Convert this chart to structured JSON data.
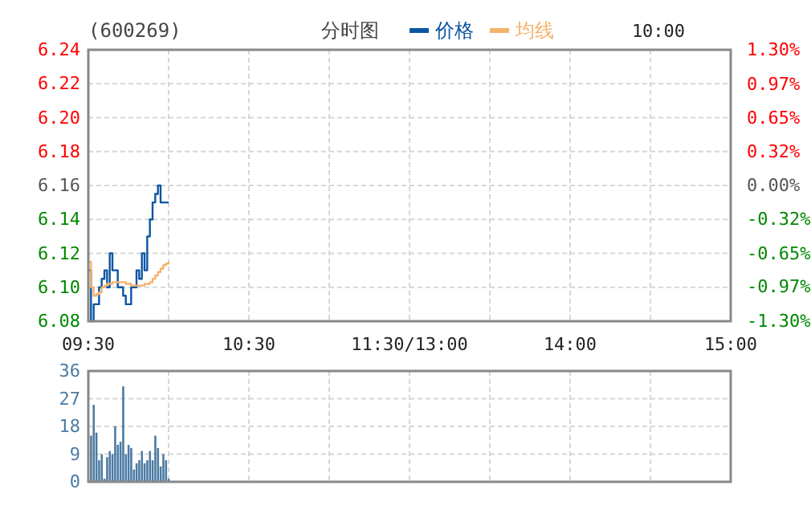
{
  "chart_data": [
    {
      "type": "line",
      "title": "(600269)",
      "subtitle": "分时图",
      "categories": [
        "09:30",
        null,
        null,
        null,
        null,
        null,
        null,
        null,
        null,
        null,
        null,
        null,
        null,
        null,
        null,
        null,
        null,
        null,
        null,
        null,
        null,
        null,
        null,
        null,
        null,
        null,
        null,
        null,
        null,
        null,
        null,
        null,
        null,
        null,
        null,
        null,
        null,
        null,
        null,
        null,
        null,
        null,
        null,
        null,
        null,
        null,
        null,
        null,
        null,
        null,
        null,
        null,
        null,
        null,
        null,
        null,
        null,
        null,
        null,
        null,
        "10:30",
        null,
        null,
        null,
        null,
        null,
        null,
        null,
        null,
        null,
        null,
        null,
        null,
        null,
        null,
        null,
        null,
        null,
        null,
        null,
        null,
        null,
        null,
        null,
        null,
        null,
        null,
        null,
        null,
        null,
        null,
        null,
        null,
        null,
        null,
        null,
        null,
        null,
        null,
        null,
        null,
        null,
        null,
        null,
        null,
        null,
        null,
        null,
        null,
        null,
        null,
        null,
        null,
        null,
        null,
        null,
        null,
        null,
        null,
        null,
        "11:30/13:00",
        null,
        null,
        null,
        null,
        null,
        null,
        null,
        null,
        null,
        null,
        null,
        null,
        null,
        null,
        null,
        null,
        null,
        null,
        null,
        null,
        null,
        null,
        null,
        null,
        null,
        null,
        null,
        null,
        null,
        null,
        null,
        null,
        null,
        null,
        null,
        null,
        null,
        null,
        null,
        null,
        null,
        null,
        null,
        null,
        null,
        null,
        null,
        null,
        null,
        null,
        null,
        null,
        null,
        null,
        null,
        null,
        null,
        null,
        null,
        "14:00",
        null,
        null,
        null,
        null,
        null,
        null,
        null,
        null,
        null,
        null,
        null,
        null,
        null,
        null,
        null,
        null,
        null,
        null,
        null,
        null,
        null,
        null,
        null,
        null,
        null,
        null,
        null,
        null,
        null,
        null,
        null,
        null,
        null,
        null,
        null,
        null,
        null,
        null,
        null,
        null,
        null,
        null,
        null,
        null,
        null,
        null,
        null,
        null,
        null,
        null,
        null,
        null,
        null,
        null,
        null,
        null,
        null,
        null,
        null,
        "15:00"
      ],
      "series": [
        {
          "name": "价格",
          "color": "#0a55a3",
          "values": [
            6.11,
            6.08,
            6.09,
            6.09,
            6.1,
            6.105,
            6.11,
            6.1,
            6.12,
            6.11,
            6.11,
            6.1,
            6.1,
            6.095,
            6.09,
            6.09,
            6.1,
            6.1,
            6.11,
            6.105,
            6.12,
            6.11,
            6.13,
            6.14,
            6.15,
            6.155,
            6.16,
            6.15,
            6.15,
            6.15,
            6.15,
            null,
            null,
            null,
            null,
            null,
            null,
            null,
            null,
            null,
            null,
            null,
            null,
            null,
            null,
            null,
            null,
            null,
            null,
            null,
            null,
            null,
            null,
            null,
            null,
            null,
            null,
            null,
            null,
            null,
            null,
            null,
            null,
            null,
            null,
            null,
            null,
            null,
            null,
            null,
            null,
            null,
            null,
            null,
            null,
            null,
            null,
            null,
            null,
            null,
            null,
            null,
            null,
            null,
            null,
            null,
            null,
            null,
            null,
            null,
            null,
            null,
            null,
            null,
            null,
            null,
            null,
            null,
            null,
            null,
            null,
            null,
            null,
            null,
            null,
            null,
            null,
            null,
            null,
            null,
            null,
            null,
            null,
            null,
            null,
            null,
            null,
            null,
            null,
            null,
            null,
            null,
            null,
            null,
            null,
            null,
            null,
            null,
            null,
            null,
            null,
            null,
            null,
            null,
            null,
            null,
            null,
            null,
            null,
            null,
            null,
            null,
            null,
            null,
            null,
            null,
            null,
            null,
            null,
            null,
            null,
            null,
            null,
            null,
            null,
            null,
            null,
            null,
            null,
            null,
            null,
            null,
            null,
            null,
            null,
            null,
            null,
            null,
            null,
            null,
            null,
            null,
            null,
            null,
            null,
            null,
            null,
            null,
            null,
            null,
            null,
            null,
            null,
            null,
            null,
            null,
            null,
            null,
            null,
            null,
            null,
            null,
            null,
            null,
            null,
            null,
            null,
            null,
            null,
            null,
            null,
            null,
            null,
            null,
            null,
            null,
            null,
            null,
            null,
            null,
            null,
            null,
            null,
            null,
            null,
            null,
            null,
            null,
            null,
            null,
            null,
            null,
            null,
            null,
            null,
            null,
            null,
            null,
            null,
            null,
            null,
            null,
            null,
            null,
            null,
            null,
            null,
            null,
            null,
            null,
            null
          ]
        },
        {
          "name": "均线",
          "color": "#f5b26b",
          "values": [
            6.115,
            6.1,
            6.095,
            6.096,
            6.097,
            6.1,
            6.101,
            6.102,
            6.102,
            6.103,
            6.103,
            6.103,
            6.103,
            6.103,
            6.102,
            6.102,
            6.101,
            6.101,
            6.101,
            6.101,
            6.101,
            6.102,
            6.102,
            6.103,
            6.105,
            6.107,
            6.109,
            6.111,
            6.113,
            6.114,
            6.115,
            null,
            null,
            null,
            null,
            null,
            null,
            null,
            null,
            null,
            null,
            null,
            null,
            null,
            null,
            null,
            null,
            null,
            null,
            null,
            null,
            null,
            null,
            null,
            null,
            null,
            null,
            null,
            null,
            null,
            null,
            null,
            null,
            null,
            null,
            null,
            null,
            null,
            null,
            null,
            null,
            null,
            null,
            null,
            null,
            null,
            null,
            null,
            null,
            null,
            null,
            null,
            null,
            null,
            null,
            null,
            null,
            null,
            null,
            null,
            null,
            null,
            null,
            null,
            null,
            null,
            null,
            null,
            null,
            null,
            null,
            null,
            null,
            null,
            null,
            null,
            null,
            null,
            null,
            null,
            null,
            null,
            null,
            null,
            null,
            null,
            null,
            null,
            null,
            null,
            null,
            null,
            null,
            null,
            null,
            null,
            null,
            null,
            null,
            null,
            null,
            null,
            null,
            null,
            null,
            null,
            null,
            null,
            null,
            null,
            null,
            null,
            null,
            null,
            null,
            null,
            null,
            null,
            null,
            null,
            null,
            null,
            null,
            null,
            null,
            null,
            null,
            null,
            null,
            null,
            null,
            null,
            null,
            null,
            null,
            null,
            null,
            null,
            null,
            null,
            null,
            null,
            null,
            null,
            null,
            null,
            null,
            null,
            null,
            null,
            null,
            null,
            null,
            null,
            null,
            null,
            null,
            null,
            null,
            null,
            null,
            null,
            null,
            null,
            null,
            null,
            null,
            null,
            null,
            null,
            null,
            null,
            null,
            null,
            null,
            null,
            null,
            null,
            null,
            null,
            null,
            null,
            null,
            null,
            null,
            null,
            null,
            null,
            null,
            null,
            null,
            null,
            null,
            null,
            null,
            null,
            null,
            null,
            null,
            null,
            null,
            null,
            null,
            null,
            null,
            null,
            null,
            null,
            null,
            null,
            null
          ]
        }
      ],
      "ylim": [
        6.08,
        6.24
      ],
      "yticks": [
        6.08,
        {
          "value": 6.1,
          "label": "6.10"
        },
        6.12,
        6.14,
        6.16,
        6.18,
        {
          "value": 6.2,
          "label": "6.20"
        },
        6.22,
        6.24
      ],
      "y2lim": [
        -1.3,
        1.3
      ],
      "y2ticks": [
        {
          "value": -1.3,
          "label": "-1.30%"
        },
        {
          "value": -0.97,
          "label": "-0.97%"
        },
        {
          "value": -0.65,
          "label": "-0.65%"
        },
        {
          "value": -0.32,
          "label": "-0.32%"
        },
        {
          "value": 0,
          "label": "0.00%"
        },
        {
          "value": 0.32,
          "label": "0.32%"
        },
        {
          "value": 0.65,
          "label": "0.65%"
        },
        {
          "value": 0.97,
          "label": "0.97%"
        },
        {
          "value": 1.3,
          "label": "1.30%"
        }
      ],
      "annotations": [
        "10:00"
      ],
      "grid": true,
      "legend": "top"
    },
    {
      "type": "bar",
      "categories": [
        null,
        null,
        null,
        null,
        null,
        null,
        null,
        null,
        null,
        null,
        null,
        null,
        null,
        null,
        null,
        null,
        null,
        null,
        null,
        null,
        null,
        null,
        null,
        null,
        null,
        null,
        null,
        null,
        null,
        null,
        null,
        null,
        null,
        null,
        null,
        null,
        null,
        null,
        null,
        null,
        null,
        null,
        null,
        null,
        null,
        null,
        null,
        null,
        null,
        null,
        null,
        null,
        null,
        null,
        null,
        null,
        null,
        null,
        null,
        null,
        null,
        null,
        null,
        null,
        null,
        null,
        null,
        null,
        null,
        null,
        null,
        null,
        null,
        null,
        null,
        null,
        null,
        null,
        null,
        null,
        null,
        null,
        null,
        null,
        null,
        null,
        null,
        null,
        null,
        null,
        null,
        null,
        null,
        null,
        null,
        null,
        null,
        null,
        null,
        null,
        null,
        null,
        null,
        null,
        null,
        null,
        null,
        null,
        null,
        null,
        null,
        null,
        null,
        null,
        null,
        null,
        null,
        null,
        null,
        null,
        null,
        null,
        null,
        null,
        null,
        null,
        null,
        null,
        null,
        null,
        null,
        null,
        null,
        null,
        null,
        null,
        null,
        null,
        null,
        null,
        null,
        null,
        null,
        null,
        null,
        null,
        null,
        null,
        null,
        null,
        null,
        null,
        null,
        null,
        null,
        null,
        null,
        null,
        null,
        null,
        null,
        null,
        null,
        null,
        null,
        null,
        null,
        null,
        null,
        null,
        null,
        null,
        null,
        null,
        null,
        null,
        null,
        null,
        null,
        null,
        null,
        null,
        null,
        null,
        null,
        null,
        null,
        null,
        null,
        null,
        null,
        null,
        null,
        null,
        null,
        null,
        null,
        null,
        null,
        null,
        null,
        null,
        null,
        null,
        null,
        null,
        null,
        null,
        null,
        null,
        null,
        null,
        null,
        null,
        null,
        null,
        null,
        null,
        null,
        null,
        null,
        null,
        null,
        null,
        null,
        null,
        null,
        null,
        null,
        null,
        null,
        null,
        null,
        null,
        null,
        null,
        null,
        null,
        null,
        null,
        null
      ],
      "series": [
        {
          "color": "#4d7ba3",
          "values": [
            null,
            15,
            25,
            16,
            7,
            9,
            1,
            8,
            10,
            9,
            18,
            12,
            13,
            31,
            9,
            12,
            11,
            4,
            6,
            7,
            10,
            6,
            7,
            10,
            7,
            15,
            11,
            5,
            9,
            7,
            1,
            null,
            null,
            null,
            null,
            null,
            null,
            null,
            null,
            null,
            null,
            null,
            null,
            null,
            null,
            null,
            null,
            null,
            null,
            null,
            null,
            null,
            null,
            null,
            null,
            null,
            null,
            null,
            null,
            null,
            null,
            null,
            null,
            null,
            null,
            null,
            null,
            null,
            null,
            null,
            null,
            null,
            null,
            null,
            null,
            null,
            null,
            null,
            null,
            null,
            null,
            null,
            null,
            null,
            null,
            null,
            null,
            null,
            null,
            null,
            null,
            null,
            null,
            null,
            null,
            null,
            null,
            null,
            null,
            null,
            null,
            null,
            null,
            null,
            null,
            null,
            null,
            null,
            null,
            null,
            null,
            null,
            null,
            null,
            null,
            null,
            null,
            null,
            null,
            null,
            null,
            null,
            null,
            null,
            null,
            null,
            null,
            null,
            null,
            null,
            null,
            null,
            null,
            null,
            null,
            null,
            null,
            null,
            null,
            null,
            null,
            null,
            null,
            null,
            null,
            null,
            null,
            null,
            null,
            null,
            null,
            null,
            null,
            null,
            null,
            null,
            null,
            null,
            null,
            null,
            null,
            null,
            null,
            null,
            null,
            null,
            null,
            null,
            null,
            null,
            null,
            null,
            null,
            null,
            null,
            null,
            null,
            null,
            null,
            null,
            null,
            null,
            null,
            null,
            null,
            null,
            null,
            null,
            null,
            null,
            null,
            null,
            null,
            null,
            null,
            null,
            null,
            null,
            null,
            null,
            null,
            null,
            null,
            null,
            null,
            null,
            null,
            null,
            null,
            null,
            null,
            null,
            null,
            null,
            null,
            null,
            null,
            null,
            null,
            null,
            null,
            null,
            null,
            null,
            null,
            null,
            null,
            null,
            null,
            null,
            null,
            null,
            null,
            null,
            null,
            null,
            null,
            null,
            null,
            null,
            null
          ]
        }
      ],
      "ylim": [
        0,
        36
      ],
      "yticks": [
        0,
        9,
        18,
        27,
        36
      ],
      "tick_labels": "y",
      "grid": true
    }
  ]
}
